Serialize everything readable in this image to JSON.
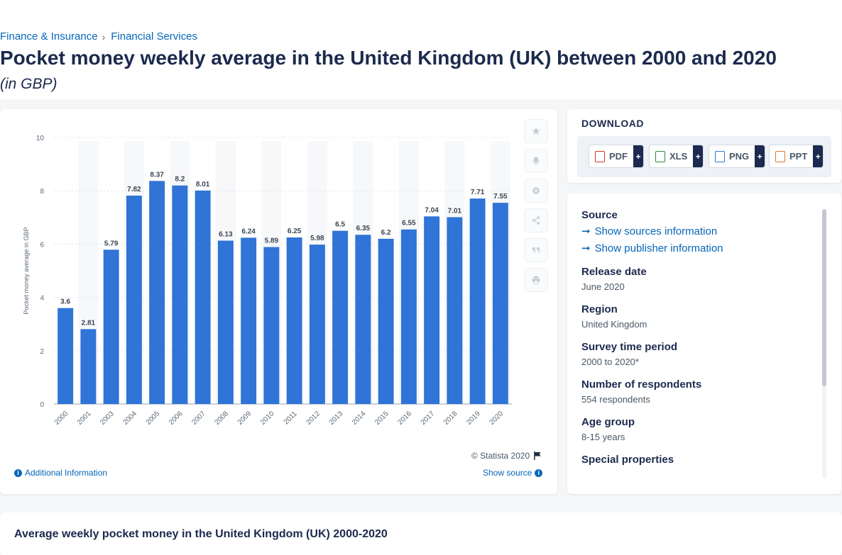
{
  "breadcrumb": {
    "items": [
      "Finance & Insurance",
      "Financial Services"
    ],
    "separator": "›"
  },
  "page": {
    "title": "Pocket money weekly average in the United Kingdom (UK) between 2000 and 2020",
    "subtitle": "(in GBP)"
  },
  "chart_data": {
    "type": "bar",
    "categories": [
      "2000",
      "2001",
      "2003",
      "2004",
      "2005",
      "2006",
      "2007",
      "2008",
      "2009",
      "2010",
      "2011",
      "2012",
      "2013",
      "2014",
      "2015",
      "2016",
      "2017",
      "2018",
      "2019",
      "2020"
    ],
    "values": [
      3.6,
      2.81,
      5.79,
      7.82,
      8.37,
      8.2,
      8.01,
      6.13,
      6.24,
      5.89,
      6.25,
      5.98,
      6.5,
      6.35,
      6.2,
      6.55,
      7.04,
      7.01,
      7.71,
      7.55
    ],
    "data_labels": [
      "3.6",
      "2.81",
      "5.79",
      "7.82",
      "8.37",
      "8.2",
      "8.01",
      "6.13",
      "6.24",
      "5.89",
      "6.25",
      "5.98",
      "6.5",
      "6.35",
      "6.2",
      "6.55",
      "7.04",
      "7.01",
      "7.71",
      "7.55"
    ],
    "ylabel": "Pocket money average in GBP",
    "xlabel": "",
    "ylim": [
      0,
      10
    ],
    "yticks": [
      "0",
      "2",
      "4",
      "6",
      "8",
      "10"
    ],
    "grid": true,
    "bar_color": "#2f74d6"
  },
  "chart_footer": {
    "copyright": "© Statista 2020",
    "additional_info": "Additional Information",
    "show_source": "Show source"
  },
  "tools": [
    "star-icon",
    "bell-icon",
    "gear-icon",
    "share-icon",
    "quote-icon",
    "print-icon"
  ],
  "download": {
    "title": "DOWNLOAD",
    "buttons": [
      {
        "label": "PDF",
        "plus": "+",
        "color": "#d9342b"
      },
      {
        "label": "XLS",
        "plus": "+",
        "color": "#2a8c3f"
      },
      {
        "label": "PNG",
        "plus": "+",
        "color": "#2f74d6"
      },
      {
        "label": "PPT",
        "plus": "+",
        "color": "#e0762b"
      }
    ]
  },
  "info": {
    "source_label": "Source",
    "show_sources": "Show sources information",
    "show_publisher": "Show publisher information",
    "release_date_label": "Release date",
    "release_date": "June 2020",
    "region_label": "Region",
    "region": "United Kingdom",
    "survey_period_label": "Survey time period",
    "survey_period": "2000 to 2020*",
    "respondents_label": "Number of respondents",
    "respondents": "554 respondents",
    "age_group_label": "Age group",
    "age_group": "8-15 years",
    "special_label": "Special properties"
  },
  "bottom": {
    "title": "Average weekly pocket money in the United Kingdom (UK) 2000-2020"
  }
}
